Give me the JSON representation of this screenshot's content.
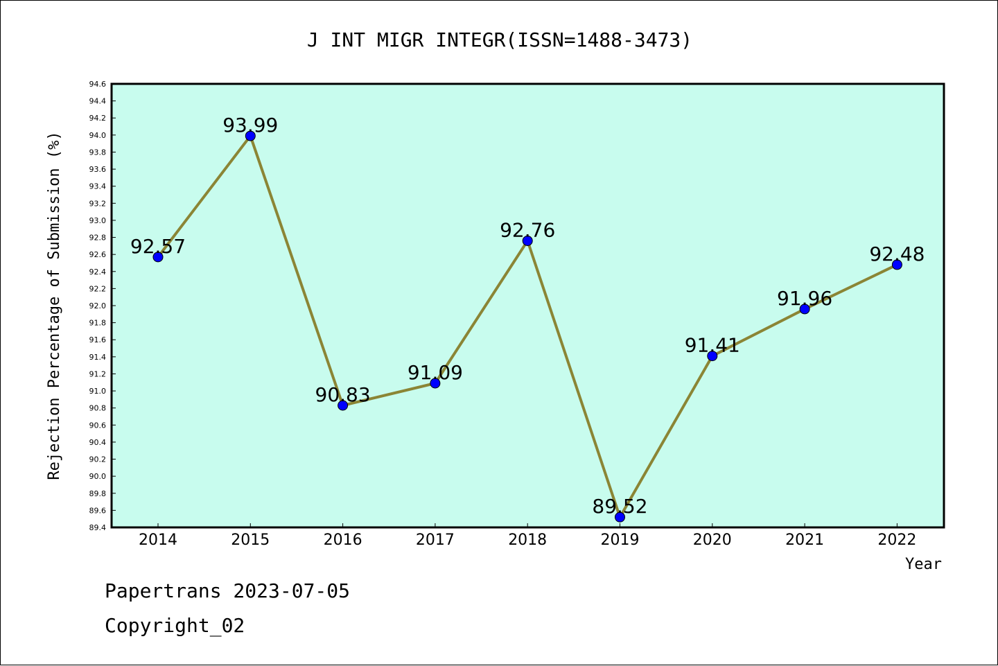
{
  "chart_data": {
    "type": "line",
    "title": "J INT MIGR INTEGR(ISSN=1488-3473)",
    "xlabel": "Year",
    "ylabel": "Rejection Percentage of Submission (%)",
    "categories": [
      "2014",
      "2015",
      "2016",
      "2017",
      "2018",
      "2019",
      "2020",
      "2021",
      "2022"
    ],
    "series": [
      {
        "values": [
          92.57,
          93.99,
          90.83,
          91.09,
          92.76,
          89.52,
          91.41,
          91.96,
          92.48
        ],
        "data_labels": [
          "92.57",
          "93.99",
          "90.83",
          "91.09",
          "92.76",
          "89.52",
          "91.41",
          "91.96",
          "92.48"
        ],
        "line_color": "#8b8535",
        "marker_color": "#0000ff"
      }
    ],
    "ylim": [
      89.4,
      94.6
    ],
    "yticks": [
      "89.4",
      "89.6",
      "89.8",
      "90.0",
      "90.2",
      "90.4",
      "90.6",
      "90.8",
      "91.0",
      "91.2",
      "91.4",
      "91.6",
      "91.8",
      "92.0",
      "92.2",
      "92.4",
      "92.6",
      "92.8",
      "93.0",
      "93.2",
      "93.4",
      "93.6",
      "93.8",
      "94.0",
      "94.2",
      "94.4",
      "94.6"
    ],
    "grid": false,
    "legend": "none",
    "plot_background": "#c8fcee"
  },
  "footer": {
    "line1": "Papertrans 2023-07-05",
    "line2": "Copyright_02"
  }
}
